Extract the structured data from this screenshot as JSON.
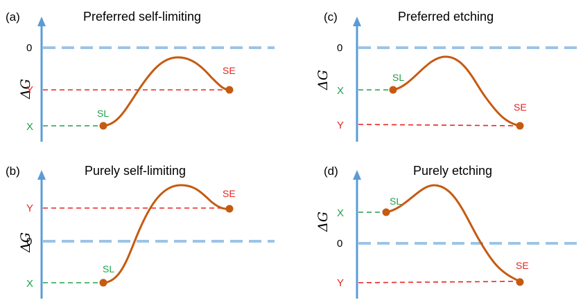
{
  "colors": {
    "axis": "#5B9BD5",
    "zero_line": "#9DC3E6",
    "sl": "#1FA04A",
    "se": "#E52421",
    "curve": "#C55A11"
  },
  "axis_title": "ΔG",
  "panels": [
    {
      "label": "(a)",
      "title": "Preferred self-limiting",
      "zero_label": "0",
      "x_label": "X",
      "y_label": "Y",
      "sl_label": "SL",
      "se_label": "SE"
    },
    {
      "label": "(b)",
      "title": "Purely self-limiting",
      "zero_label": "0",
      "x_label": "X",
      "y_label": "Y",
      "sl_label": "SL",
      "se_label": "SE"
    },
    {
      "label": "(c)",
      "title": "Preferred etching",
      "zero_label": "0",
      "x_label": "X",
      "y_label": "Y",
      "sl_label": "SL",
      "se_label": "SE"
    },
    {
      "label": "(d)",
      "title": "Purely etching",
      "zero_label": "0",
      "x_label": "X",
      "y_label": "Y",
      "sl_label": "SL",
      "se_label": "SE"
    }
  ]
}
